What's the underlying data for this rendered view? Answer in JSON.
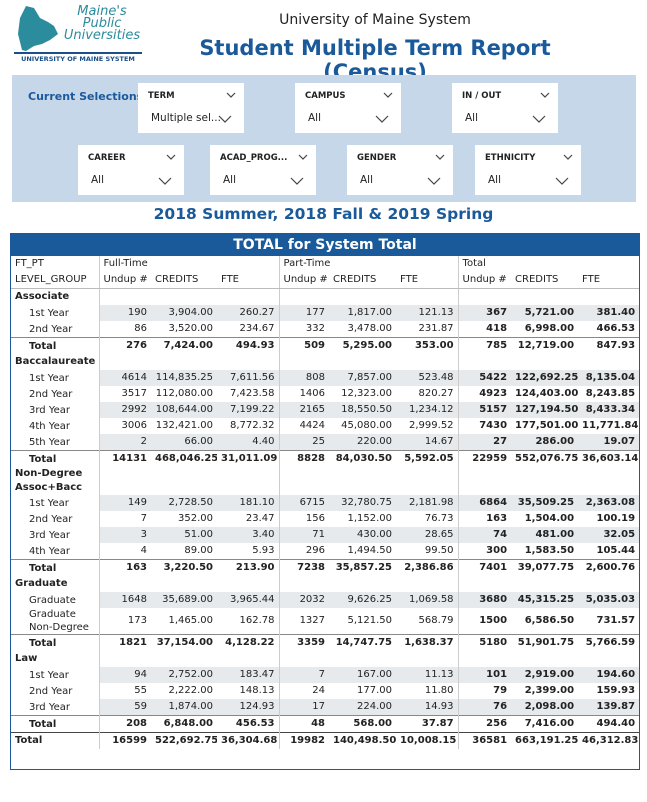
{
  "header": {
    "logo_lines": [
      "Maine's",
      "Public",
      "Universities"
    ],
    "logo_band": "UNIVERSITY OF MAINE SYSTEM",
    "org": "University of Maine System",
    "title": "Student Multiple Term Report (Census)"
  },
  "filters": {
    "label": "Current Selections",
    "slicers": [
      {
        "label": "TERM",
        "value": "Multiple sel..."
      },
      {
        "label": "CAMPUS",
        "value": "All"
      },
      {
        "label": "IN / OUT",
        "value": "All"
      },
      {
        "label": "CAREER",
        "value": "All"
      },
      {
        "label": "ACAD_PROG...",
        "value": "All"
      },
      {
        "label": "GENDER",
        "value": "All"
      },
      {
        "label": "ETHNICITY",
        "value": "All"
      }
    ]
  },
  "period": "2018 Summer, 2018 Fall & 2019 Spring",
  "table": {
    "title": "TOTAL for System Total",
    "row_header_1": "FT_PT",
    "row_header_2": "LEVEL_GROUP",
    "col_groups": [
      "Full-Time",
      "Part-Time",
      "Total"
    ],
    "columns": [
      "Undup #",
      "CREDITS",
      "FTE",
      "Undup #",
      "CREDITS",
      "FTE",
      "Undup #",
      "CREDITS",
      "FTE"
    ],
    "groups": [
      {
        "name": "Associate",
        "rows": [
          {
            "label": "1st Year",
            "values": [
              "190",
              "3,904.00",
              "260.27",
              "177",
              "1,817.00",
              "121.13",
              "367",
              "5,721.00",
              "381.40"
            ]
          },
          {
            "label": "2nd Year",
            "values": [
              "86",
              "3,520.00",
              "234.67",
              "332",
              "3,478.00",
              "231.87",
              "418",
              "6,998.00",
              "466.53"
            ]
          }
        ],
        "total": {
          "label": "Total",
          "values": [
            "276",
            "7,424.00",
            "494.93",
            "509",
            "5,295.00",
            "353.00",
            "785",
            "12,719.00",
            "847.93"
          ]
        }
      },
      {
        "name": "Baccalaureate",
        "rows": [
          {
            "label": "1st Year",
            "values": [
              "4614",
              "114,835.25",
              "7,611.56",
              "808",
              "7,857.00",
              "523.48",
              "5422",
              "122,692.25",
              "8,135.04"
            ]
          },
          {
            "label": "2nd Year",
            "values": [
              "3517",
              "112,080.00",
              "7,423.58",
              "1406",
              "12,323.00",
              "820.27",
              "4923",
              "124,403.00",
              "8,243.85"
            ]
          },
          {
            "label": "3rd Year",
            "values": [
              "2992",
              "108,644.00",
              "7,199.22",
              "2165",
              "18,550.50",
              "1,234.12",
              "5157",
              "127,194.50",
              "8,433.34"
            ]
          },
          {
            "label": "4th Year",
            "values": [
              "3006",
              "132,421.00",
              "8,772.32",
              "4424",
              "45,080.00",
              "2,999.52",
              "7430",
              "177,501.00",
              "11,771.84"
            ]
          },
          {
            "label": "5th Year",
            "values": [
              "2",
              "66.00",
              "4.40",
              "25",
              "220.00",
              "14.67",
              "27",
              "286.00",
              "19.07"
            ]
          }
        ],
        "total": {
          "label": "Total",
          "values": [
            "14131",
            "468,046.25",
            "31,011.09",
            "8828",
            "84,030.50",
            "5,592.05",
            "22959",
            "552,076.75",
            "36,603.14"
          ]
        }
      },
      {
        "name": "Non-Degree Assoc+Bacc",
        "rows": [
          {
            "label": "1st Year",
            "values": [
              "149",
              "2,728.50",
              "181.10",
              "6715",
              "32,780.75",
              "2,181.98",
              "6864",
              "35,509.25",
              "2,363.08"
            ]
          },
          {
            "label": "2nd Year",
            "values": [
              "7",
              "352.00",
              "23.47",
              "156",
              "1,152.00",
              "76.73",
              "163",
              "1,504.00",
              "100.19"
            ]
          },
          {
            "label": "3rd Year",
            "values": [
              "3",
              "51.00",
              "3.40",
              "71",
              "430.00",
              "28.65",
              "74",
              "481.00",
              "32.05"
            ]
          },
          {
            "label": "4th Year",
            "values": [
              "4",
              "89.00",
              "5.93",
              "296",
              "1,494.50",
              "99.50",
              "300",
              "1,583.50",
              "105.44"
            ]
          }
        ],
        "total": {
          "label": "Total",
          "values": [
            "163",
            "3,220.50",
            "213.90",
            "7238",
            "35,857.25",
            "2,386.86",
            "7401",
            "39,077.75",
            "2,600.76"
          ]
        }
      },
      {
        "name": "Graduate",
        "rows": [
          {
            "label": "Graduate",
            "values": [
              "1648",
              "35,689.00",
              "3,965.44",
              "2032",
              "9,626.25",
              "1,069.58",
              "3680",
              "45,315.25",
              "5,035.03"
            ]
          },
          {
            "label": "Graduate Non-Degree",
            "values": [
              "173",
              "1,465.00",
              "162.78",
              "1327",
              "5,121.50",
              "568.79",
              "1500",
              "6,586.50",
              "731.57"
            ]
          }
        ],
        "total": {
          "label": "Total",
          "values": [
            "1821",
            "37,154.00",
            "4,128.22",
            "3359",
            "14,747.75",
            "1,638.37",
            "5180",
            "51,901.75",
            "5,766.59"
          ]
        }
      },
      {
        "name": "Law",
        "rows": [
          {
            "label": "1st Year",
            "values": [
              "94",
              "2,752.00",
              "183.47",
              "7",
              "167.00",
              "11.13",
              "101",
              "2,919.00",
              "194.60"
            ]
          },
          {
            "label": "2nd Year",
            "values": [
              "55",
              "2,222.00",
              "148.13",
              "24",
              "177.00",
              "11.80",
              "79",
              "2,399.00",
              "159.93"
            ]
          },
          {
            "label": "3rd Year",
            "values": [
              "59",
              "1,874.00",
              "124.93",
              "17",
              "224.00",
              "14.93",
              "76",
              "2,098.00",
              "139.87"
            ]
          }
        ],
        "total": {
          "label": "Total",
          "values": [
            "208",
            "6,848.00",
            "456.53",
            "48",
            "568.00",
            "37.87",
            "256",
            "7,416.00",
            "494.40"
          ]
        }
      }
    ],
    "grand_total": {
      "label": "Total",
      "values": [
        "16599",
        "522,692.75",
        "36,304.68",
        "19982",
        "140,498.50",
        "10,008.15",
        "36581",
        "663,191.25",
        "46,312.83"
      ]
    }
  }
}
